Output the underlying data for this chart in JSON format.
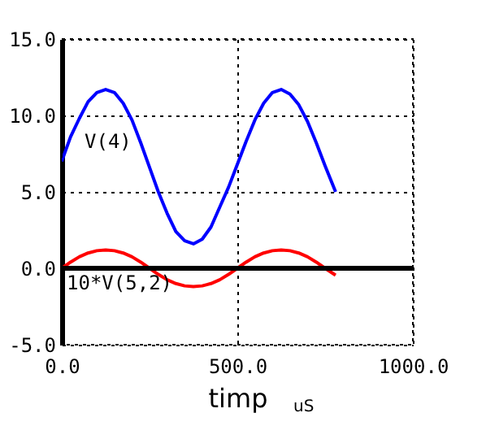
{
  "chart_data": {
    "type": "line",
    "xlabel": "timp",
    "annotations": [
      "uS"
    ],
    "x": [
      0,
      25,
      50,
      75,
      100,
      125,
      150,
      175,
      200,
      225,
      250,
      275,
      300,
      325,
      350,
      375,
      400,
      425,
      450,
      475,
      500,
      525,
      550,
      575,
      600,
      625,
      650,
      675,
      700,
      725,
      750,
      780
    ],
    "series": [
      {
        "name": "V(4)",
        "color": "#0000ff",
        "values": [
          7.0,
          8.6,
          9.8,
          10.9,
          11.5,
          11.7,
          11.5,
          10.8,
          9.7,
          8.2,
          6.6,
          5.0,
          3.6,
          2.4,
          1.8,
          1.6,
          1.9,
          2.7,
          4.0,
          5.3,
          6.8,
          8.3,
          9.7,
          10.8,
          11.5,
          11.7,
          11.4,
          10.7,
          9.6,
          8.2,
          6.7,
          5.0
        ]
      },
      {
        "name": "10*V(5,2)",
        "color": "#ff0000",
        "values": [
          0,
          0.4,
          0.75,
          1.0,
          1.15,
          1.2,
          1.15,
          1.0,
          0.75,
          0.4,
          0,
          -0.4,
          -0.75,
          -1.0,
          -1.15,
          -1.2,
          -1.15,
          -1.0,
          -0.75,
          -0.4,
          0,
          0.4,
          0.75,
          1.0,
          1.15,
          1.2,
          1.15,
          1.0,
          0.75,
          0.4,
          0,
          -0.45
        ]
      }
    ],
    "xlim": [
      0,
      1000
    ],
    "xticks": [
      {
        "value": 0,
        "label": "0.0"
      },
      {
        "value": 500,
        "label": "500.0"
      },
      {
        "value": 1000,
        "label": "1000.0"
      }
    ],
    "ylim": [
      -5,
      15
    ],
    "yticks": [
      {
        "value": -5,
        "label": "-5.0"
      },
      {
        "value": 0,
        "label": "0.0"
      },
      {
        "value": 5,
        "label": "5.0"
      },
      {
        "value": 10,
        "label": "10.0"
      },
      {
        "value": 15,
        "label": "15.0"
      }
    ],
    "ref_lines": [
      {
        "axis": "y",
        "value": 0,
        "color": "#000000"
      }
    ],
    "grid": true,
    "legend": false
  }
}
